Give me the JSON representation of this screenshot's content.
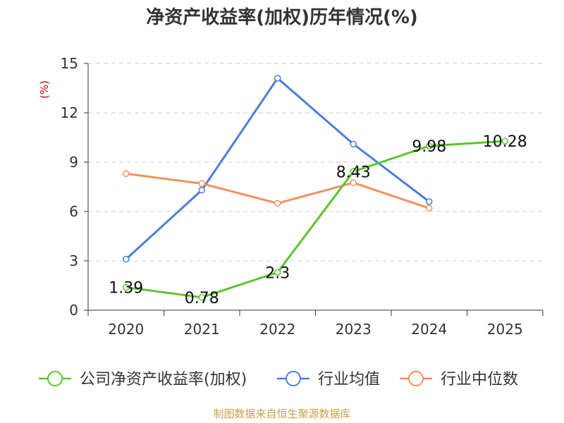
{
  "chart_data": {
    "type": "line",
    "title": "净资产收益率(加权)历年情况(%)",
    "ylabel": "(%)",
    "categories": [
      "2020",
      "2021",
      "2022",
      "2023",
      "2024",
      "2025"
    ],
    "ylim": [
      0,
      15
    ],
    "yticks": [
      "0",
      "3",
      "6",
      "9",
      "12",
      "15"
    ],
    "grid": true,
    "legend": "bottom",
    "series": [
      {
        "name": "公司净资产收益率(加权)",
        "color": "#5cc52c",
        "values": [
          1.39,
          0.78,
          2.3,
          8.43,
          9.98,
          10.28
        ],
        "labels": [
          "1.39",
          "0.78",
          "2.3",
          "8.43",
          "9.98",
          "10.28"
        ]
      },
      {
        "name": "行业均值",
        "color": "#4a7fd8",
        "values": [
          3.1,
          7.3,
          14.1,
          10.1,
          6.6,
          null
        ]
      },
      {
        "name": "行业中位数",
        "color": "#f4915e",
        "values": [
          8.3,
          7.7,
          6.5,
          7.75,
          6.2,
          null
        ]
      }
    ]
  },
  "source": "制图数据来自恒生聚源数据库"
}
